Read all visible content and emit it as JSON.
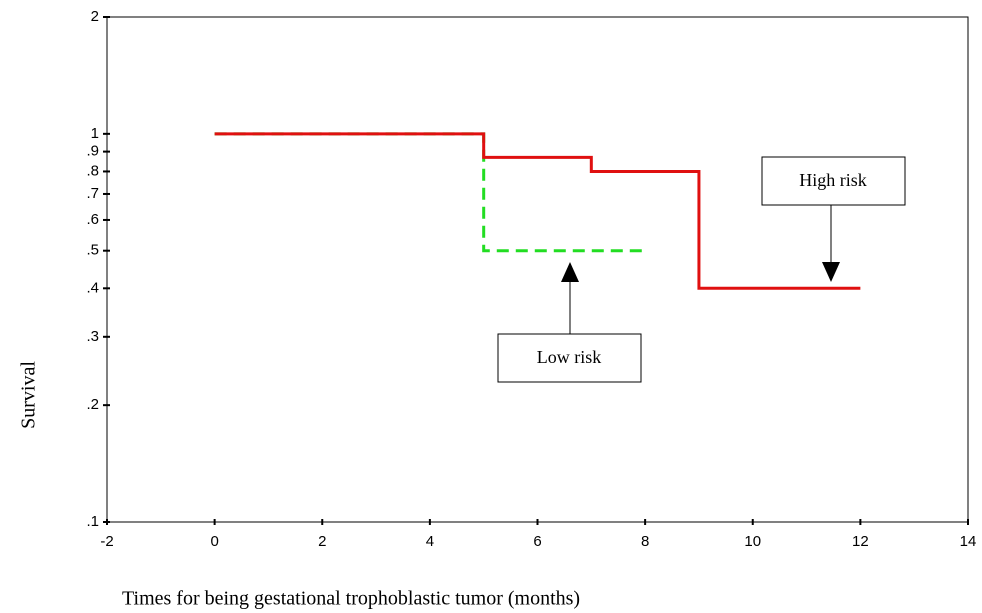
{
  "chart_data": {
    "type": "step",
    "ylabel": "Survival",
    "xlabel": "Times for being gestational trophoblastic tumor (months)",
    "log_y": true,
    "xlim": [
      -2,
      14
    ],
    "xticks": [
      -2,
      0,
      2,
      4,
      6,
      8,
      10,
      12,
      14
    ],
    "ylim": [
      0.1,
      2
    ],
    "yticks": [
      2,
      1,
      {
        "value": 0.9,
        "label": ".9"
      },
      {
        "value": 0.8,
        "label": ".8"
      },
      {
        "value": 0.7,
        "label": ".7"
      },
      {
        "value": 0.6,
        "label": ".6"
      },
      {
        "value": 0.5,
        "label": ".5"
      },
      {
        "value": 0.4,
        "label": ".4"
      },
      {
        "value": 0.3,
        "label": ".3"
      },
      {
        "value": 0.2,
        "label": ".2"
      },
      {
        "value": 0.1,
        "label": ".1"
      }
    ],
    "series": [
      {
        "name": "Low risk",
        "color": "#22dd22",
        "dashed": true,
        "x": [
          0,
          5,
          8
        ],
        "values": [
          1,
          0.5,
          0.5
        ]
      },
      {
        "name": "High risk",
        "color": "#e01010",
        "dashed": false,
        "x": [
          0,
          5,
          7,
          9,
          12
        ],
        "values": [
          1,
          0.87,
          0.8,
          0.4,
          0.4
        ]
      }
    ]
  }
}
